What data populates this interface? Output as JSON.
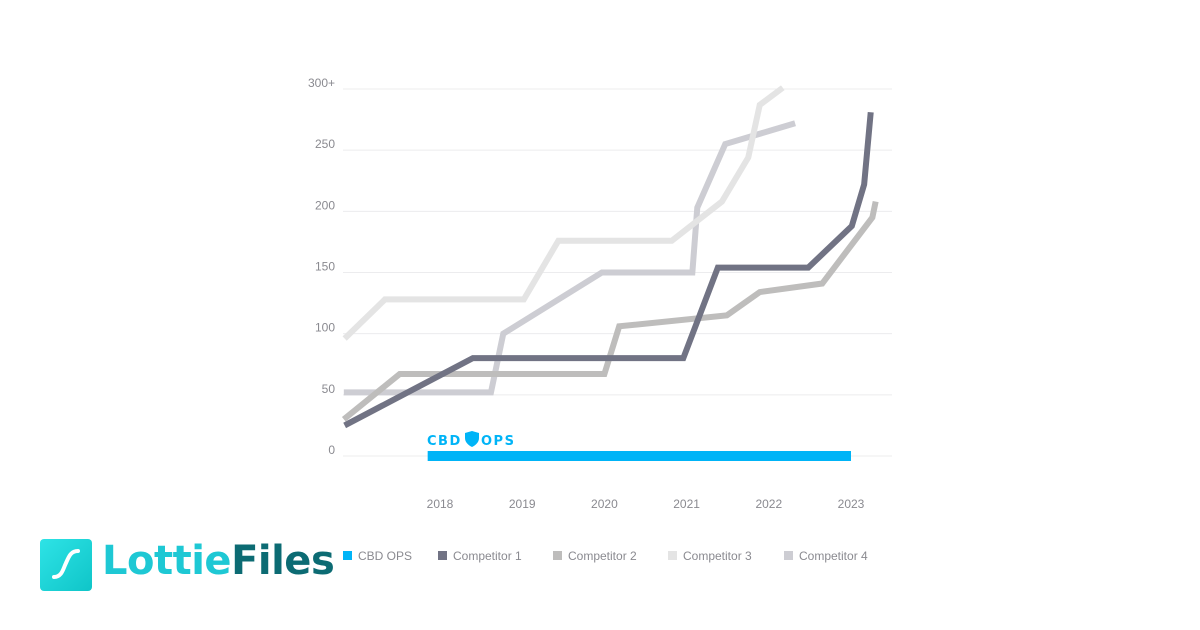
{
  "chart_data": {
    "type": "line",
    "title": "",
    "xlabel": "",
    "ylabel": "",
    "x_ticks": [
      "2018",
      "2019",
      "2020",
      "2021",
      "2022",
      "2023"
    ],
    "y_ticks": [
      "0",
      "50",
      "100",
      "150",
      "200",
      "250",
      "300+"
    ],
    "ylim": [
      0,
      300
    ],
    "xlim": [
      2016.8,
      2023.5
    ],
    "grid": true,
    "legend_position": "bottom",
    "series": [
      {
        "name": "CBD OPS",
        "color": "#00b4f7",
        "points": [
          [
            2017.85,
            0
          ],
          [
            2023.0,
            0
          ]
        ]
      },
      {
        "name": "Competitor 1",
        "color": "#717384",
        "points": [
          [
            2016.84,
            25
          ],
          [
            2018.4,
            80
          ],
          [
            2020.96,
            80
          ],
          [
            2021.38,
            154
          ],
          [
            2022.48,
            154
          ],
          [
            2023.01,
            188
          ],
          [
            2023.16,
            222
          ],
          [
            2023.24,
            281
          ]
        ]
      },
      {
        "name": "Competitor 2",
        "color": "#bebdbc",
        "points": [
          [
            2016.83,
            30
          ],
          [
            2017.51,
            67
          ],
          [
            2020.0,
            67
          ],
          [
            2020.18,
            106
          ],
          [
            2021.49,
            115
          ],
          [
            2021.89,
            134
          ],
          [
            2022.65,
            141
          ],
          [
            2023.26,
            195
          ],
          [
            2023.3,
            208
          ]
        ]
      },
      {
        "name": "Competitor 3",
        "color": "#e4e4e4",
        "points": [
          [
            2016.84,
            96
          ],
          [
            2017.33,
            128
          ],
          [
            2019.02,
            128
          ],
          [
            2019.44,
            176
          ],
          [
            2020.82,
            176
          ],
          [
            2021.43,
            208
          ],
          [
            2021.75,
            244
          ],
          [
            2021.89,
            287
          ],
          [
            2022.17,
            301
          ]
        ]
      },
      {
        "name": "Competitor 4",
        "color": "#cdcdd3",
        "points": [
          [
            2016.83,
            52
          ],
          [
            2018.62,
            52
          ],
          [
            2018.77,
            100
          ],
          [
            2019.97,
            150
          ],
          [
            2021.07,
            150
          ],
          [
            2021.13,
            203
          ],
          [
            2021.47,
            255
          ],
          [
            2022.32,
            272
          ]
        ]
      }
    ],
    "annotation_logo": "CBD OPS"
  },
  "branding": {
    "logo_part1": "Lottie",
    "logo_part2": "Files"
  }
}
